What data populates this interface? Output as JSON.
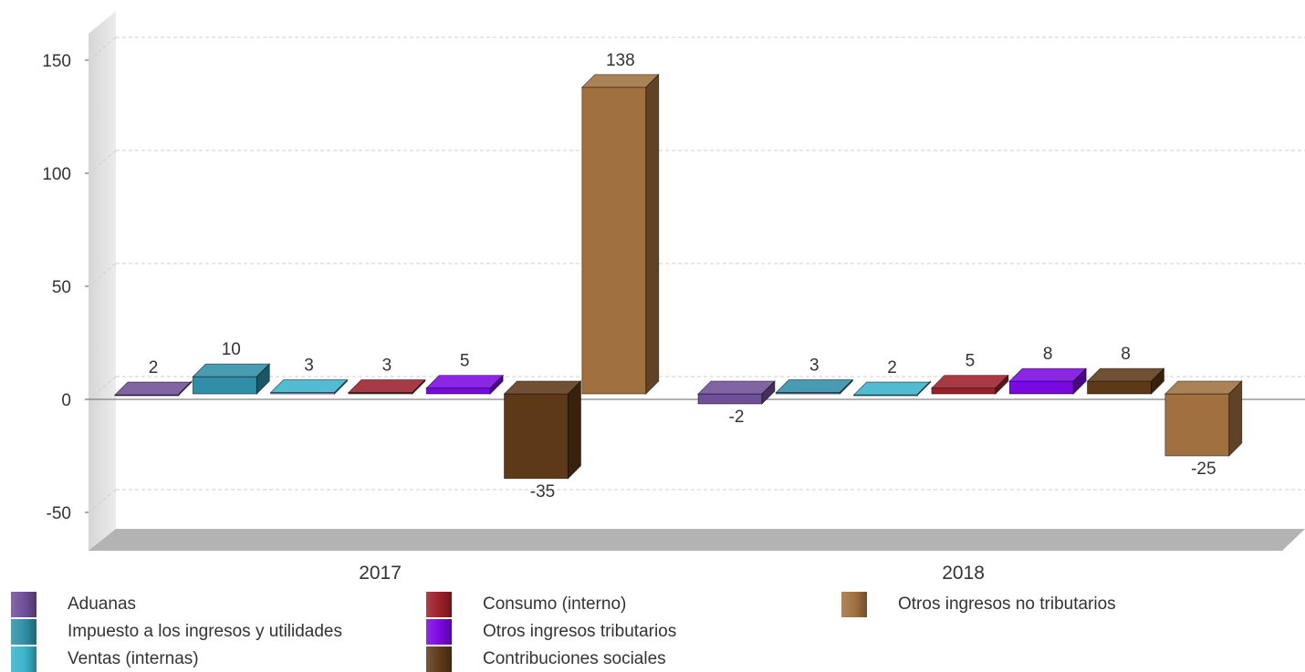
{
  "chart_data": {
    "type": "bar",
    "categories": [
      "2017",
      "2018"
    ],
    "series": [
      {
        "name": "Aduanas",
        "values": [
          2,
          -2
        ],
        "color": "#6f4f97"
      },
      {
        "name": "Impuesto a los ingresos y utilidades",
        "values": [
          10,
          3
        ],
        "color": "#2f8fa7"
      },
      {
        "name": "Ventas (internas)",
        "values": [
          3,
          2
        ],
        "color": "#3ab3cc"
      },
      {
        "name": "Consumo (interno)",
        "values": [
          3,
          5
        ],
        "color": "#9b1f2a"
      },
      {
        "name": "Otros ingresos tributarios",
        "values": [
          5,
          8
        ],
        "color": "#7a08e0"
      },
      {
        "name": "Contribuciones sociales",
        "values": [
          -35,
          8
        ],
        "color": "#5e3918"
      },
      {
        "name": "Otros ingresos no tributarios",
        "values": [
          138,
          -25
        ],
        "color": "#a0703f"
      }
    ],
    "yticks": [
      -50,
      0,
      50,
      100,
      150
    ],
    "ylim": [
      -60,
      160
    ],
    "grid": true,
    "legend_position": "bottom"
  }
}
